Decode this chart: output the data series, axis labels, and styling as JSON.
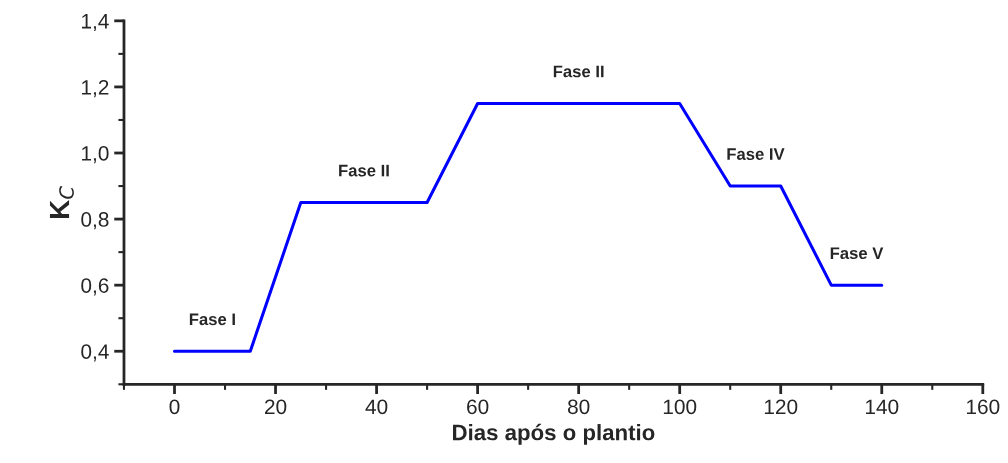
{
  "chart_data": {
    "type": "line",
    "xlabel": "Dias após o plantio",
    "ylabel": "K$_{C}$",
    "x": [
      0,
      15,
      25,
      50,
      60,
      100,
      110,
      120,
      130,
      140
    ],
    "series": [
      {
        "color": "#0000ff",
        "values": [
          0.4,
          0.4,
          0.85,
          0.85,
          1.15,
          1.15,
          0.9,
          0.9,
          0.6,
          0.6
        ]
      }
    ],
    "xlim": [
      -10,
      160
    ],
    "xticks": [
      0,
      20,
      40,
      60,
      80,
      100,
      120,
      140,
      160
    ],
    "ylim": [
      0.3,
      1.4
    ],
    "yticks": [
      {
        "value": 0.4,
        "label": "0,4"
      },
      {
        "value": 0.6,
        "label": "0,6"
      },
      {
        "value": 0.8,
        "label": "0,8"
      },
      {
        "value": 1.0,
        "label": "1,0"
      },
      {
        "value": 1.2,
        "label": "1,2"
      },
      {
        "value": 1.4,
        "label": "1,4"
      }
    ],
    "grid": false,
    "marker": "none",
    "line_style": "solid",
    "annotations": [
      "Fase I",
      "Fase II",
      "Fase II",
      "Fase IV",
      "Fase V"
    ]
  }
}
